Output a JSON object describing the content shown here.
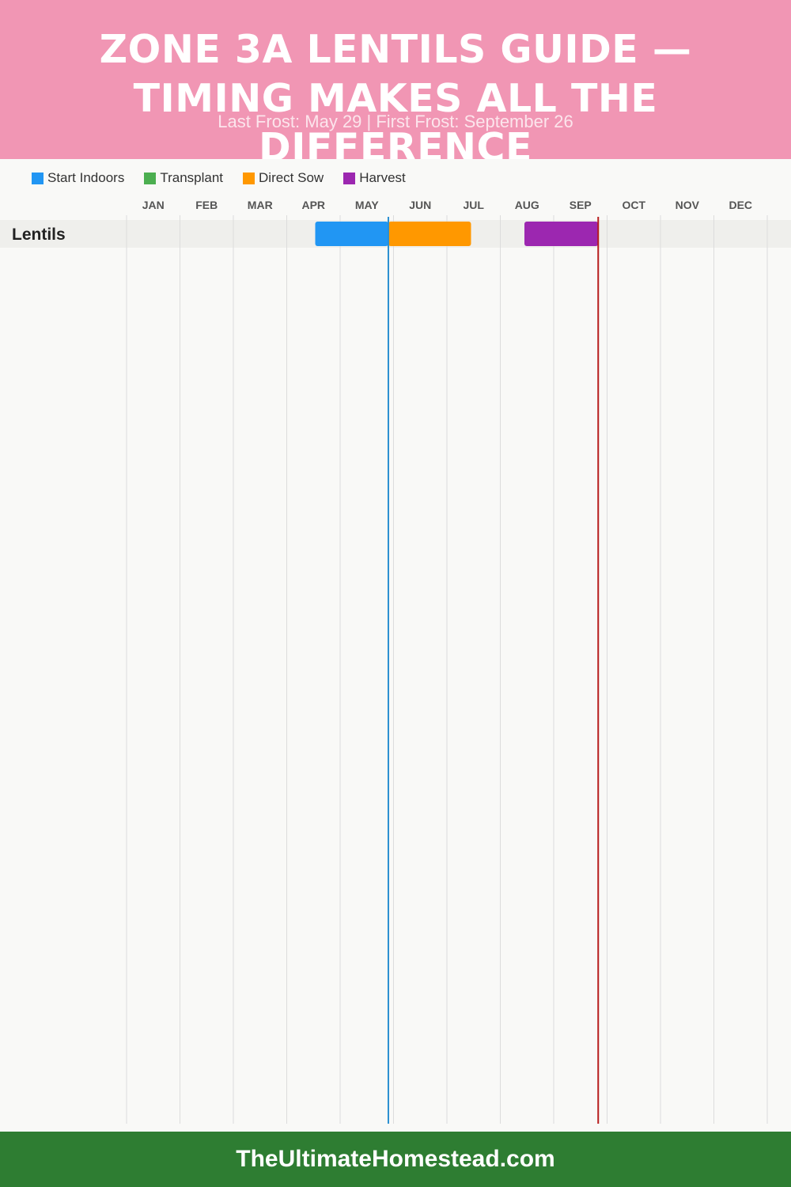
{
  "header": {
    "title": "ZONE 3A LENTILS GUIDE — TIMING MAKES ALL THE DIFFERENCE",
    "subtitle": "Last Frost: May 29 | First Frost: September 26"
  },
  "colors": {
    "header_bg": "#f196b4",
    "footer_bg": "#2e7d32",
    "start_indoors": "#2196f3",
    "transplant": "#4caf50",
    "direct_sow": "#ff9800",
    "harvest": "#9c27b0",
    "last_frost_line": "#2a8fd1",
    "first_frost_line": "#b71c1c"
  },
  "chart_data": {
    "type": "gantt",
    "months": [
      "JAN",
      "FEB",
      "MAR",
      "APR",
      "MAY",
      "JUN",
      "JUL",
      "AUG",
      "SEP",
      "OCT",
      "NOV",
      "DEC"
    ],
    "legend": [
      {
        "label": "Start Indoors",
        "color": "#2196f3"
      },
      {
        "label": "Transplant",
        "color": "#4caf50"
      },
      {
        "label": "Direct Sow",
        "color": "#ff9800"
      },
      {
        "label": "Harvest",
        "color": "#9c27b0"
      }
    ],
    "crops": [
      {
        "name": "Lentils",
        "tasks": [
          {
            "type": "Start Indoors",
            "start": "Apr 17",
            "end": "May 29"
          },
          {
            "type": "Direct Sow",
            "start": "May 29",
            "end": "Jul 15"
          },
          {
            "type": "Harvest",
            "start": "Aug 15",
            "end": "Sep 26"
          }
        ]
      }
    ],
    "markers": [
      {
        "label": "Last Frost",
        "date": "May 29"
      },
      {
        "label": "First Frost",
        "date": "Sep 26"
      }
    ]
  },
  "footer": {
    "text": "TheUltimateHomestead.com"
  }
}
